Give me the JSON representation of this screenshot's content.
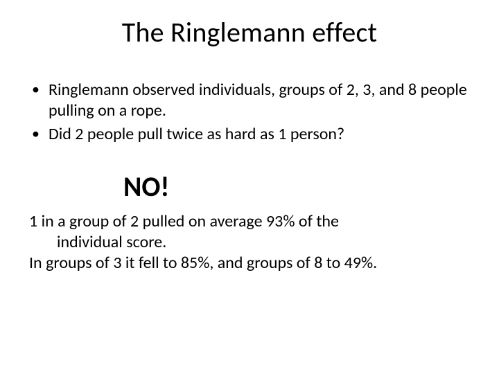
{
  "slide": {
    "title": "The Ringlemann effect",
    "bullets": [
      "Ringlemann observed individuals, groups of 2, 3, and 8 people pulling on a rope.",
      "Did 2 people pull twice as hard as 1 person?"
    ],
    "exclaim": "NO!",
    "paragraph_line1a": "1 in a group of 2 pulled on average 93% of the",
    "paragraph_line1b": "individual score.",
    "paragraph_line2": "In groups of 3 it fell to 85%, and groups of 8 to 49%.",
    "colors": {
      "background": "#ffffff",
      "text": "#000000"
    },
    "fonts": {
      "title_size_pt": 40,
      "body_size_pt": 24,
      "exclaim_size_pt": 40,
      "exclaim_weight": 700
    }
  }
}
